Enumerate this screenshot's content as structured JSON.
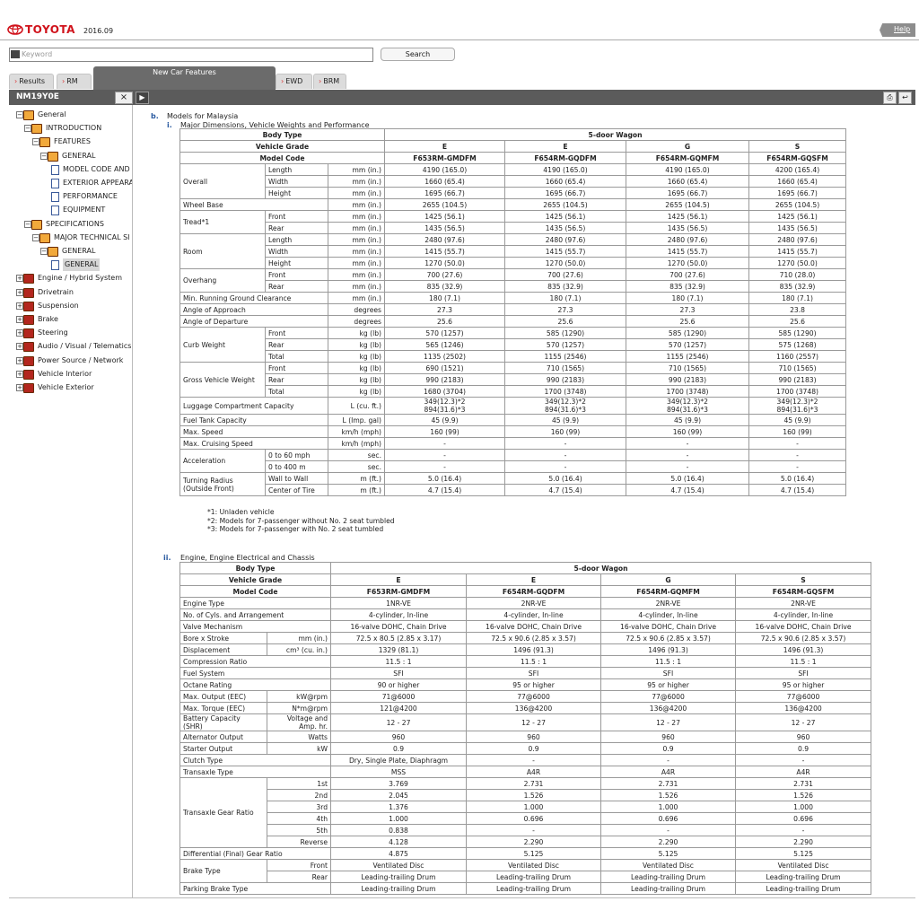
{
  "header": {
    "brand": "TOYOTA",
    "version": "2016.09",
    "help": "Help",
    "keyword_placeholder": "Keyword",
    "search": "Search"
  },
  "tabs": [
    "Results",
    "RM",
    "New Car Features",
    "EWD",
    "BRM"
  ],
  "toolbar": {
    "document_id": "NM19Y0E"
  },
  "tree": [
    {
      "label": "General",
      "children": [
        {
          "label": "INTRODUCTION",
          "children": [
            {
              "label": "FEATURES",
              "children": [
                {
                  "label": "GENERAL",
                  "children": [
                    {
                      "label": "MODEL CODE AND"
                    },
                    {
                      "label": "EXTERIOR APPEARA"
                    },
                    {
                      "label": "PERFORMANCE"
                    },
                    {
                      "label": "EQUIPMENT"
                    }
                  ]
                }
              ]
            }
          ]
        },
        {
          "label": "SPECIFICATIONS",
          "children": [
            {
              "label": "MAJOR TECHNICAL SI",
              "children": [
                {
                  "label": "GENERAL",
                  "children": [
                    {
                      "label": "GENERAL"
                    }
                  ]
                }
              ]
            }
          ]
        }
      ]
    }
  ],
  "sections": [
    "Engine / Hybrid System",
    "Drivetrain",
    "Suspension",
    "Brake",
    "Steering",
    "Audio / Visual / Telematics",
    "Power Source / Network",
    "Vehicle Interior",
    "Vehicle Exterior"
  ],
  "content": {
    "marker": "b.",
    "title": "Models for Malaysia",
    "table1": {
      "marker": "i.",
      "title": "Major Dimensions, Vehicle Weights and Performance",
      "body_type_label": "Body Type",
      "body_type": "5-door Wagon",
      "grade_label": "Vehicle Grade",
      "grades": [
        "E",
        "E",
        "G",
        "S"
      ],
      "model_code_label": "Model Code",
      "model_codes": [
        "F653RM-GMDFM",
        "F654RM-GQDFM",
        "F654RM-GQMFM",
        "F654RM-GQSFM"
      ],
      "groups": [
        {
          "label": "Overall",
          "rows": [
            {
              "sub": "Length",
              "unit": "mm (in.)",
              "values": [
                "4190 (165.0)",
                "4190 (165.0)",
                "4190 (165.0)",
                "4200 (165.4)"
              ]
            },
            {
              "sub": "Width",
              "unit": "mm (in.)",
              "values": [
                "1660 (65.4)",
                "1660 (65.4)",
                "1660 (65.4)",
                "1660 (65.4)"
              ]
            },
            {
              "sub": "Height",
              "unit": "mm (in.)",
              "values": [
                "1695 (66.7)",
                "1695 (66.7)",
                "1695 (66.7)",
                "1695 (66.7)"
              ]
            }
          ]
        },
        {
          "label": "Wheel Base",
          "rows": [
            {
              "unit": "mm (in.)",
              "values": [
                "2655 (104.5)",
                "2655 (104.5)",
                "2655 (104.5)",
                "2655 (104.5)"
              ]
            }
          ]
        },
        {
          "label": "Tread*1",
          "rows": [
            {
              "sub": "Front",
              "unit": "mm (in.)",
              "values": [
                "1425 (56.1)",
                "1425 (56.1)",
                "1425 (56.1)",
                "1425 (56.1)"
              ]
            },
            {
              "sub": "Rear",
              "unit": "mm (in.)",
              "values": [
                "1435 (56.5)",
                "1435 (56.5)",
                "1435 (56.5)",
                "1435 (56.5)"
              ]
            }
          ]
        },
        {
          "label": "Room",
          "rows": [
            {
              "sub": "Length",
              "unit": "mm (in.)",
              "values": [
                "2480 (97.6)",
                "2480 (97.6)",
                "2480 (97.6)",
                "2480 (97.6)"
              ]
            },
            {
              "sub": "Width",
              "unit": "mm (in.)",
              "values": [
                "1415 (55.7)",
                "1415 (55.7)",
                "1415 (55.7)",
                "1415 (55.7)"
              ]
            },
            {
              "sub": "Height",
              "unit": "mm (in.)",
              "values": [
                "1270 (50.0)",
                "1270 (50.0)",
                "1270 (50.0)",
                "1270 (50.0)"
              ]
            }
          ]
        },
        {
          "label": "Overhang",
          "rows": [
            {
              "sub": "Front",
              "unit": "mm (in.)",
              "values": [
                "700 (27.6)",
                "700 (27.6)",
                "700 (27.6)",
                "710 (28.0)"
              ]
            },
            {
              "sub": "Rear",
              "unit": "mm (in.)",
              "values": [
                "835 (32.9)",
                "835 (32.9)",
                "835 (32.9)",
                "835 (32.9)"
              ]
            }
          ]
        },
        {
          "label": "Min. Running Ground Clearance",
          "rows": [
            {
              "unit": "mm (in.)",
              "values": [
                "180 (7.1)",
                "180 (7.1)",
                "180 (7.1)",
                "180 (7.1)"
              ]
            }
          ]
        },
        {
          "label": "Angle of Approach",
          "rows": [
            {
              "unit": "degrees",
              "values": [
                "27.3",
                "27.3",
                "27.3",
                "23.8"
              ]
            }
          ]
        },
        {
          "label": "Angle of Departure",
          "rows": [
            {
              "unit": "degrees",
              "values": [
                "25.6",
                "25.6",
                "25.6",
                "25.6"
              ]
            }
          ]
        },
        {
          "label": "Curb Weight",
          "rows": [
            {
              "sub": "Front",
              "unit": "kg (lb)",
              "values": [
                "570 (1257)",
                "585 (1290)",
                "585 (1290)",
                "585 (1290)"
              ]
            },
            {
              "sub": "Rear",
              "unit": "kg (lb)",
              "values": [
                "565 (1246)",
                "570 (1257)",
                "570 (1257)",
                "575 (1268)"
              ]
            },
            {
              "sub": "Total",
              "unit": "kg (lb)",
              "values": [
                "1135 (2502)",
                "1155 (2546)",
                "1155 (2546)",
                "1160 (2557)"
              ]
            }
          ]
        },
        {
          "label": "Gross Vehicle Weight",
          "rows": [
            {
              "sub": "Front",
              "unit": "kg (lb)",
              "values": [
                "690 (1521)",
                "710 (1565)",
                "710 (1565)",
                "710 (1565)"
              ]
            },
            {
              "sub": "Rear",
              "unit": "kg (lb)",
              "values": [
                "990 (2183)",
                "990 (2183)",
                "990 (2183)",
                "990 (2183)"
              ]
            },
            {
              "sub": "Total",
              "unit": "kg (lb)",
              "values": [
                "1680 (3704)",
                "1700 (3748)",
                "1700 (3748)",
                "1700 (3748)"
              ]
            }
          ]
        },
        {
          "label": "Luggage Compartment Capacity",
          "rows": [
            {
              "unit": "L (cu. ft.)",
              "values": [
                "349(12.3)*2\n894(31.6)*3",
                "349(12.3)*2\n894(31.6)*3",
                "349(12.3)*2\n894(31.6)*3",
                "349(12.3)*2\n894(31.6)*3"
              ]
            }
          ]
        },
        {
          "label": "Fuel Tank Capacity",
          "rows": [
            {
              "unit": "L (Imp. gal)",
              "values": [
                "45 (9.9)",
                "45 (9.9)",
                "45 (9.9)",
                "45 (9.9)"
              ]
            }
          ]
        },
        {
          "label": "Max. Speed",
          "rows": [
            {
              "unit": "km/h (mph)",
              "values": [
                "160 (99)",
                "160 (99)",
                "160 (99)",
                "160 (99)"
              ]
            }
          ]
        },
        {
          "label": "Max. Cruising Speed",
          "rows": [
            {
              "unit": "km/h (mph)",
              "values": [
                "-",
                "-",
                "-",
                "-"
              ]
            }
          ]
        },
        {
          "label": "Acceleration",
          "rows": [
            {
              "sub": "0 to 60 mph",
              "unit": "sec.",
              "values": [
                "-",
                "-",
                "-",
                "-"
              ]
            },
            {
              "sub": "0 to 400 m",
              "unit": "sec.",
              "values": [
                "-",
                "-",
                "-",
                "-"
              ]
            }
          ]
        },
        {
          "label": "Turning Radius\n(Outside Front)",
          "rows": [
            {
              "sub": "Wall to Wall",
              "unit": "m (ft.)",
              "values": [
                "5.0 (16.4)",
                "5.0 (16.4)",
                "5.0 (16.4)",
                "5.0 (16.4)"
              ]
            },
            {
              "sub": "Center of Tire",
              "unit": "m (ft.)",
              "values": [
                "4.7 (15.4)",
                "4.7 (15.4)",
                "4.7 (15.4)",
                "4.7 (15.4)"
              ]
            }
          ]
        }
      ],
      "notes": [
        "*1: Unladen vehicle",
        "*2: Models for 7-passenger without No. 2 seat tumbled",
        "*3: Models for 7-passenger with No. 2 seat tumbled"
      ]
    },
    "table2": {
      "marker": "ii.",
      "title": "Engine, Engine Electrical and Chassis",
      "body_type_label": "Body Type",
      "body_type": "5-door Wagon",
      "grade_label": "Vehicle Grade",
      "grades": [
        "E",
        "E",
        "G",
        "S"
      ],
      "model_code_label": "Model Code",
      "model_codes": [
        "F653RM-GMDFM",
        "F654RM-GQDFM",
        "F654RM-GQMFM",
        "F654RM-GQSFM"
      ],
      "groups": [
        {
          "label": "Engine Type",
          "rows": [
            {
              "values": [
                "1NR-VE",
                "2NR-VE",
                "2NR-VE",
                "2NR-VE"
              ]
            }
          ]
        },
        {
          "label": "No. of Cyls. and Arrangement",
          "rows": [
            {
              "values": [
                "4-cylinder, In-line",
                "4-cylinder, In-line",
                "4-cylinder, In-line",
                "4-cylinder, In-line"
              ]
            }
          ]
        },
        {
          "label": "Valve Mechanism",
          "rows": [
            {
              "values": [
                "16-valve DOHC, Chain Drive",
                "16-valve DOHC, Chain Drive",
                "16-valve DOHC, Chain Drive",
                "16-valve DOHC, Chain Drive"
              ]
            }
          ]
        },
        {
          "label": "Bore x Stroke",
          "rows": [
            {
              "unit": "mm (in.)",
              "values": [
                "72.5 x 80.5 (2.85 x 3.17)",
                "72.5 x 90.6 (2.85 x 3.57)",
                "72.5 x 90.6 (2.85 x 3.57)",
                "72.5 x 90.6 (2.85 x 3.57)"
              ]
            }
          ]
        },
        {
          "label": "Displacement",
          "rows": [
            {
              "unit": "cm³ (cu. in.)",
              "values": [
                "1329 (81.1)",
                "1496 (91.3)",
                "1496 (91.3)",
                "1496 (91.3)"
              ]
            }
          ]
        },
        {
          "label": "Compression Ratio",
          "rows": [
            {
              "values": [
                "11.5 : 1",
                "11.5 : 1",
                "11.5 : 1",
                "11.5 : 1"
              ]
            }
          ]
        },
        {
          "label": "Fuel System",
          "rows": [
            {
              "values": [
                "SFI",
                "SFI",
                "SFI",
                "SFI"
              ]
            }
          ]
        },
        {
          "label": "Octane Rating",
          "rows": [
            {
              "values": [
                "90 or higher",
                "95 or higher",
                "95 or higher",
                "95 or higher"
              ]
            }
          ]
        },
        {
          "label": "Max. Output (EEC)",
          "rows": [
            {
              "unit": "kW@rpm",
              "values": [
                "71@6000",
                "77@6000",
                "77@6000",
                "77@6000"
              ]
            }
          ]
        },
        {
          "label": "Max. Torque (EEC)",
          "rows": [
            {
              "unit": "N*m@rpm",
              "values": [
                "121@4200",
                "136@4200",
                "136@4200",
                "136@4200"
              ]
            }
          ]
        },
        {
          "label": "Battery Capacity\n(SHR)",
          "rows": [
            {
              "unit": "Voltage and\nAmp. hr.",
              "values": [
                "12 - 27",
                "12 - 27",
                "12 - 27",
                "12 - 27"
              ]
            }
          ]
        },
        {
          "label": "Alternator Output",
          "rows": [
            {
              "unit": "Watts",
              "values": [
                "960",
                "960",
                "960",
                "960"
              ]
            }
          ]
        },
        {
          "label": "Starter Output",
          "rows": [
            {
              "unit": "kW",
              "values": [
                "0.9",
                "0.9",
                "0.9",
                "0.9"
              ]
            }
          ]
        },
        {
          "label": "Clutch Type",
          "rows": [
            {
              "values": [
                "Dry, Single Plate, Diaphragm",
                "-",
                "-",
                "-"
              ]
            }
          ]
        },
        {
          "label": "Transaxle Type",
          "rows": [
            {
              "values": [
                "MSS",
                "A4R",
                "A4R",
                "A4R"
              ]
            }
          ]
        },
        {
          "label": "Transaxle Gear Ratio",
          "rows": [
            {
              "unit": "1st",
              "values": [
                "3.769",
                "2.731",
                "2.731",
                "2.731"
              ]
            },
            {
              "unit": "2nd",
              "values": [
                "2.045",
                "1.526",
                "1.526",
                "1.526"
              ]
            },
            {
              "unit": "3rd",
              "values": [
                "1.376",
                "1.000",
                "1.000",
                "1.000"
              ]
            },
            {
              "unit": "4th",
              "values": [
                "1.000",
                "0.696",
                "0.696",
                "0.696"
              ]
            },
            {
              "unit": "5th",
              "values": [
                "0.838",
                "-",
                "-",
                "-"
              ]
            },
            {
              "unit": "Reverse",
              "values": [
                "4.128",
                "2.290",
                "2.290",
                "2.290"
              ]
            }
          ]
        },
        {
          "label": "Differential (Final) Gear Ratio",
          "rows": [
            {
              "values": [
                "4.875",
                "5.125",
                "5.125",
                "5.125"
              ]
            }
          ]
        },
        {
          "label": "Brake Type",
          "rows": [
            {
              "unit": "Front",
              "values": [
                "Ventilated Disc",
                "Ventilated Disc",
                "Ventilated Disc",
                "Ventilated Disc"
              ]
            },
            {
              "unit": "Rear",
              "values": [
                "Leading-trailing Drum",
                "Leading-trailing Drum",
                "Leading-trailing Drum",
                "Leading-trailing Drum"
              ]
            }
          ]
        },
        {
          "label": "Parking Brake Type",
          "rows": [
            {
              "values": [
                "Leading-trailing Drum",
                "Leading-trailing Drum",
                "Leading-trailing Drum",
                "Leading-trailing Drum"
              ]
            }
          ]
        }
      ]
    }
  }
}
